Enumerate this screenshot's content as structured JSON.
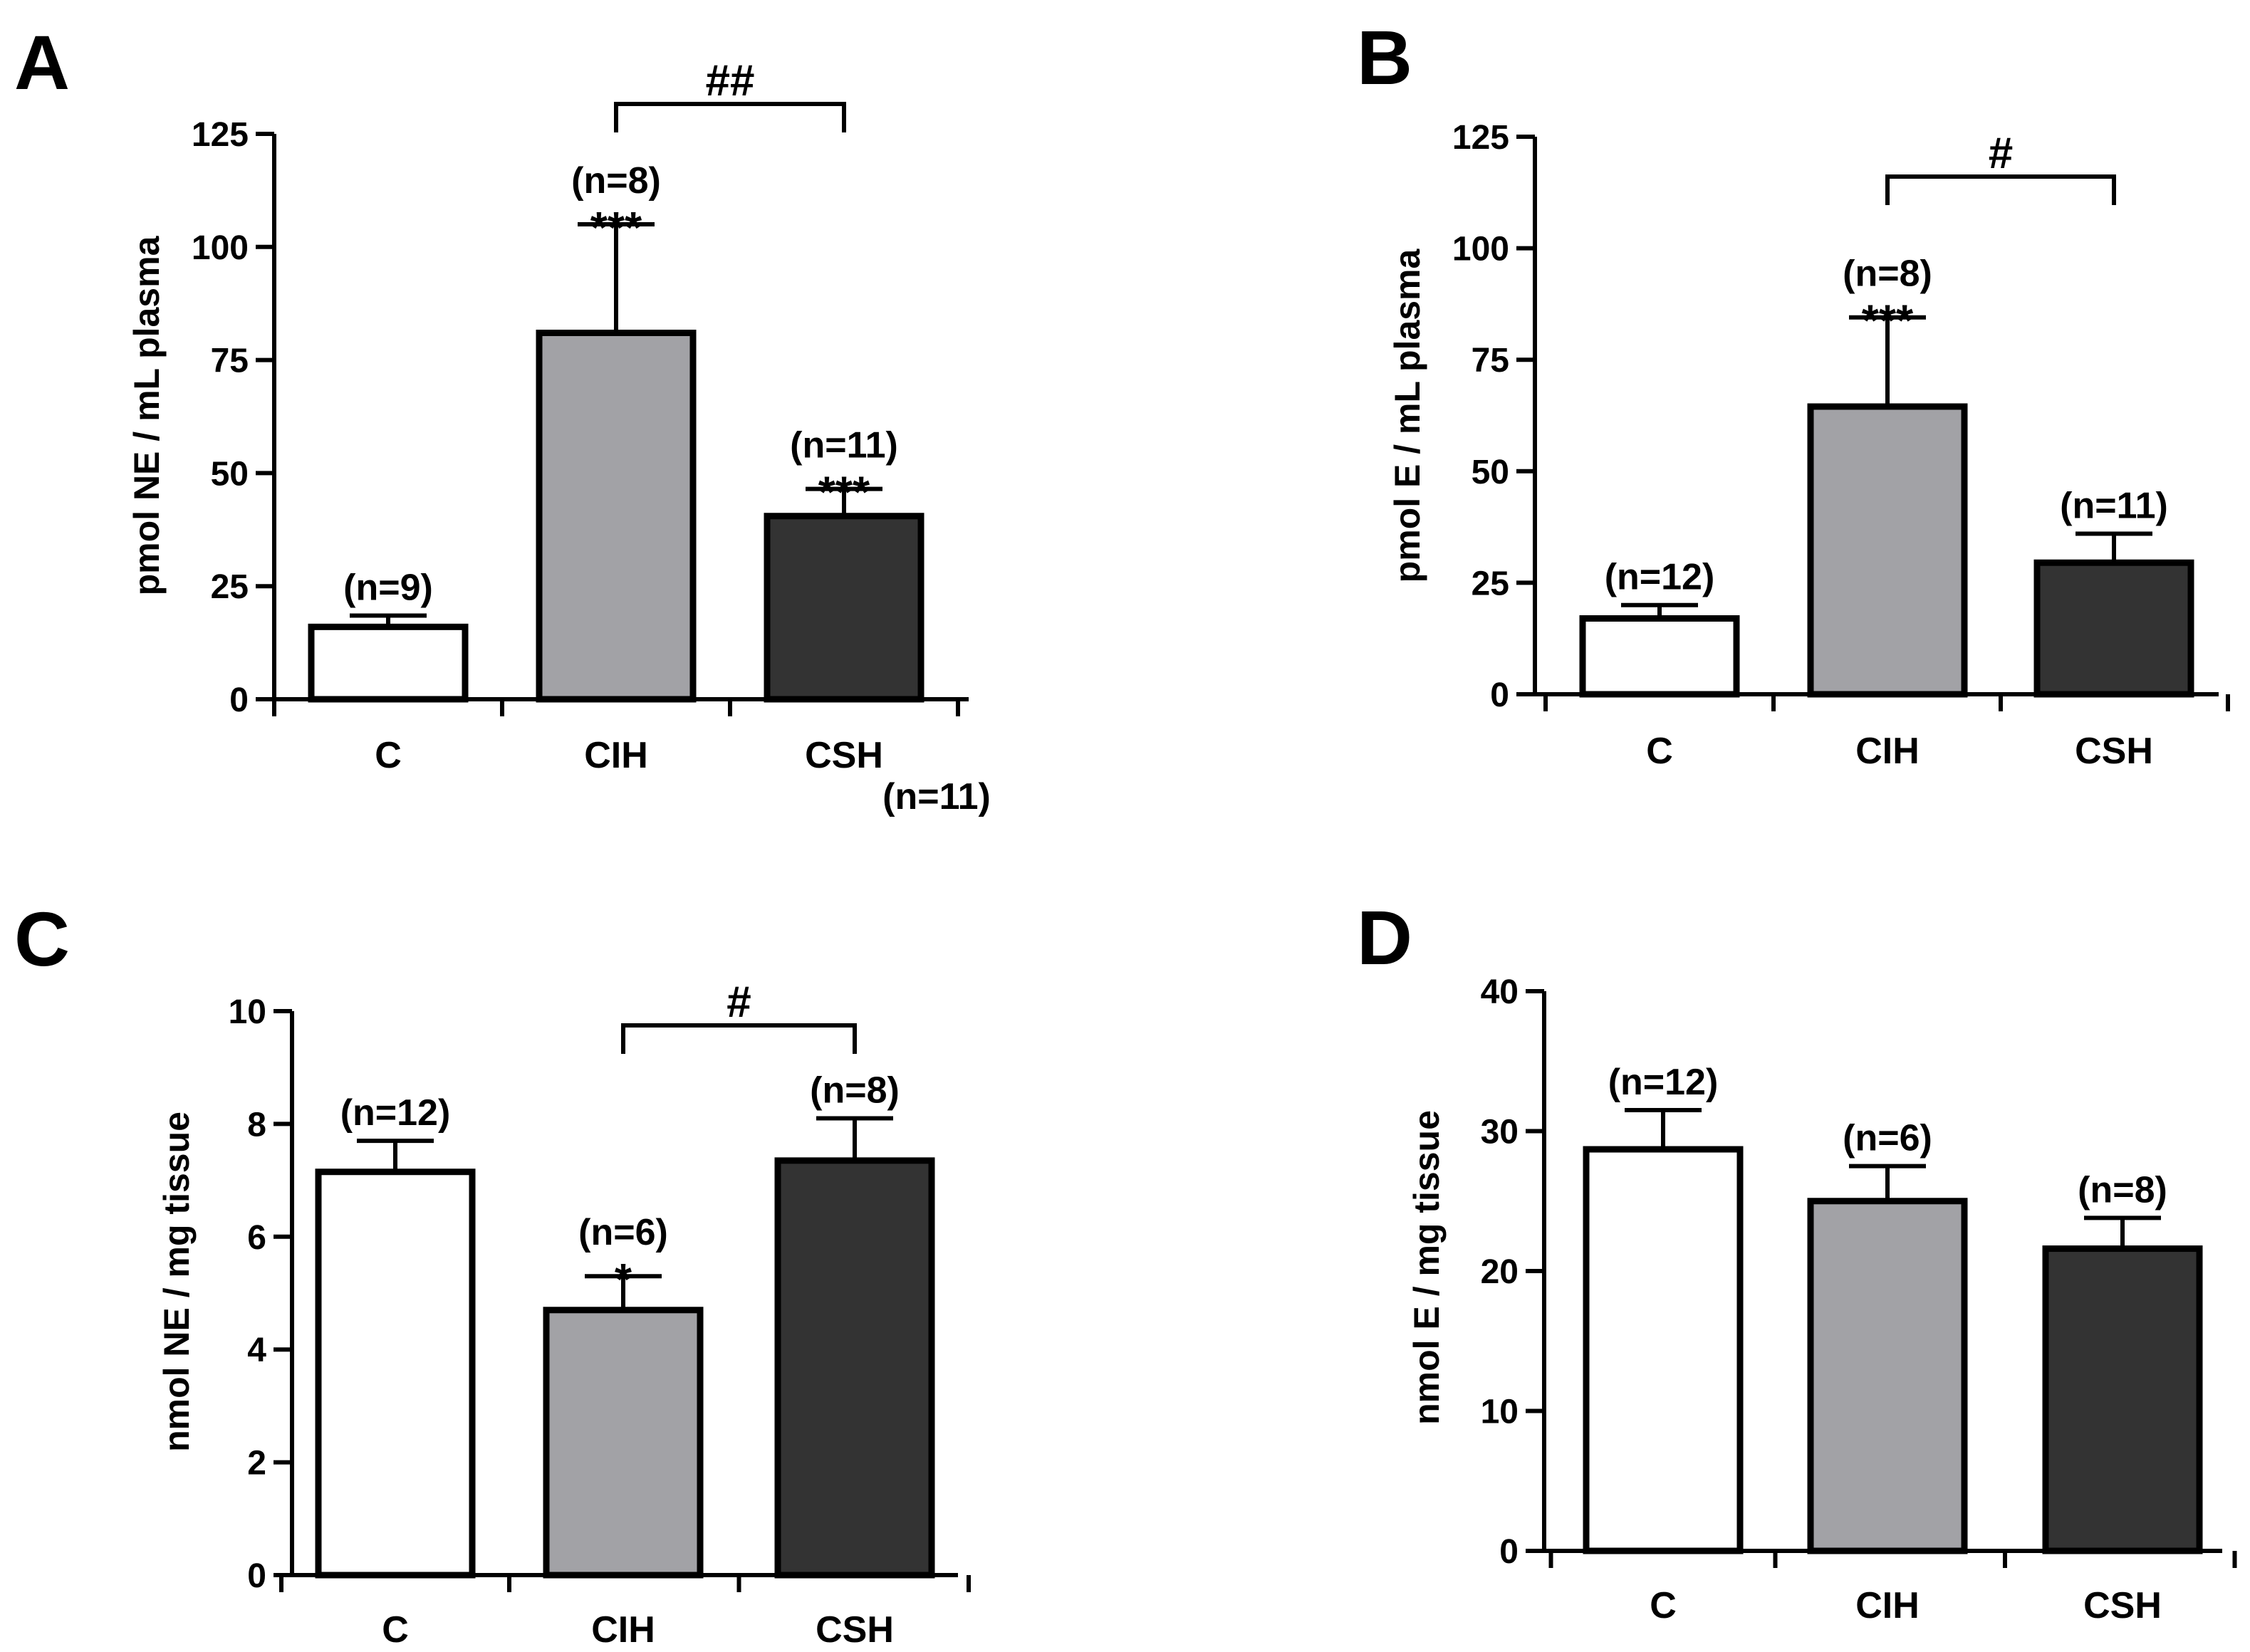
{
  "colors": {
    "C": "#ffffff",
    "CIH": "#a2a2a6",
    "CSH": "#333333"
  },
  "chart_data": [
    {
      "panel": "A",
      "type": "bar",
      "ylabel": "pmol NE / mL plasma",
      "ylim": [
        0,
        125
      ],
      "yticks": [
        "0",
        "25",
        "50",
        "75",
        "100",
        "125"
      ],
      "categories": [
        "C",
        "CIH",
        "CSH"
      ],
      "values": [
        16,
        81,
        40.5
      ],
      "errors": [
        2.5,
        24,
        6
      ],
      "n_labels": [
        "(n=9)",
        "(n=8)",
        "(n=11)"
      ],
      "extra_n_label": "(n=11)",
      "significance": [
        "",
        "***",
        "***"
      ],
      "bracket": {
        "from": "CIH",
        "to": "CSH",
        "label": "##"
      }
    },
    {
      "panel": "B",
      "type": "bar",
      "ylabel": "pmol E / mL plasma",
      "ylim": [
        0,
        125
      ],
      "yticks": [
        "0",
        "25",
        "50",
        "75",
        "100",
        "125"
      ],
      "categories": [
        "C",
        "CIH",
        "CSH"
      ],
      "values": [
        17,
        64.5,
        29.5
      ],
      "errors": [
        3,
        20,
        6.5
      ],
      "n_labels": [
        "(n=12)",
        "(n=8)",
        "(n=11)"
      ],
      "significance": [
        "",
        "***",
        ""
      ],
      "bracket": {
        "from": "CIH",
        "to": "CSH",
        "label": "#"
      }
    },
    {
      "panel": "C",
      "type": "bar",
      "ylabel": "nmol NE / mg tissue",
      "ylim": [
        0,
        10
      ],
      "yticks": [
        "0",
        "2",
        "4",
        "6",
        "8",
        "10"
      ],
      "categories": [
        "C",
        "CIH",
        "CSH"
      ],
      "values": [
        7.15,
        4.7,
        7.35
      ],
      "errors": [
        0.55,
        0.6,
        0.75
      ],
      "n_labels": [
        "(n=12)",
        "(n=6)",
        "(n=8)"
      ],
      "significance": [
        "",
        "*",
        ""
      ],
      "bracket": {
        "from": "CIH",
        "to": "CSH",
        "label": "#"
      }
    },
    {
      "panel": "D",
      "type": "bar",
      "ylabel": "nmol E / mg tissue",
      "ylim": [
        0,
        40
      ],
      "yticks": [
        "0",
        "10",
        "20",
        "30",
        "40"
      ],
      "categories": [
        "C",
        "CIH",
        "CSH"
      ],
      "values": [
        28.7,
        25.0,
        21.6
      ],
      "errors": [
        2.8,
        2.5,
        2.2
      ],
      "n_labels": [
        "(n=12)",
        "(n=6)",
        "(n=8)"
      ],
      "significance": [
        "",
        "",
        ""
      ],
      "bracket": null
    }
  ]
}
